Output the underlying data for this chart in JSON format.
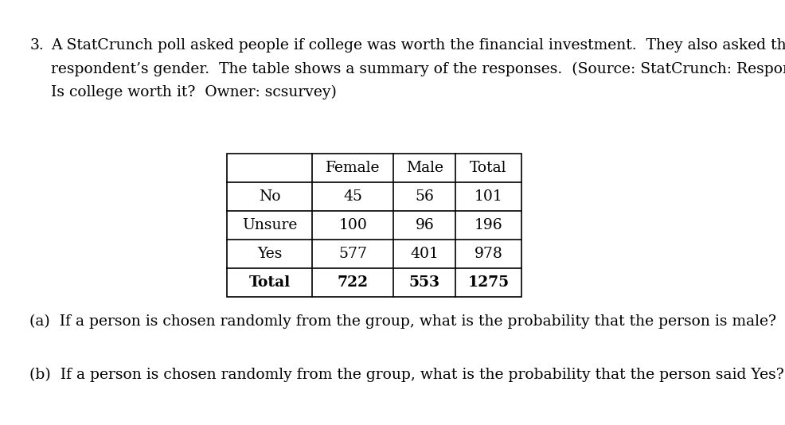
{
  "background_color": "#ffffff",
  "problem_number": "3.",
  "intro_text_line1": "A StatCrunch poll asked people if college was worth the financial investment.  They also asked the",
  "intro_text_line2": "respondent’s gender.  The table shows a summary of the responses.  (Source: StatCrunch: Responses to",
  "intro_text_line3": "Is college worth it?  Owner: scsurvey)",
  "table_headers": [
    "",
    "Female",
    "Male",
    "Total"
  ],
  "table_rows": [
    [
      "No",
      "45",
      "56",
      "101"
    ],
    [
      "Unsure",
      "100",
      "96",
      "196"
    ],
    [
      "Yes",
      "577",
      "401",
      "978"
    ],
    [
      "Total",
      "722",
      "553",
      "1275"
    ]
  ],
  "question_a": "(a)  If a person is chosen randomly from the group, what is the probability that the person is male?",
  "question_b": "(b)  If a person is chosen randomly from the group, what is the probability that the person said Yes?",
  "font_size_text": 13.5,
  "font_size_table": 13.5,
  "font_family": "serif",
  "text_color": "#000000",
  "fig_width": 9.86,
  "fig_height": 5.34,
  "dpi": 100
}
